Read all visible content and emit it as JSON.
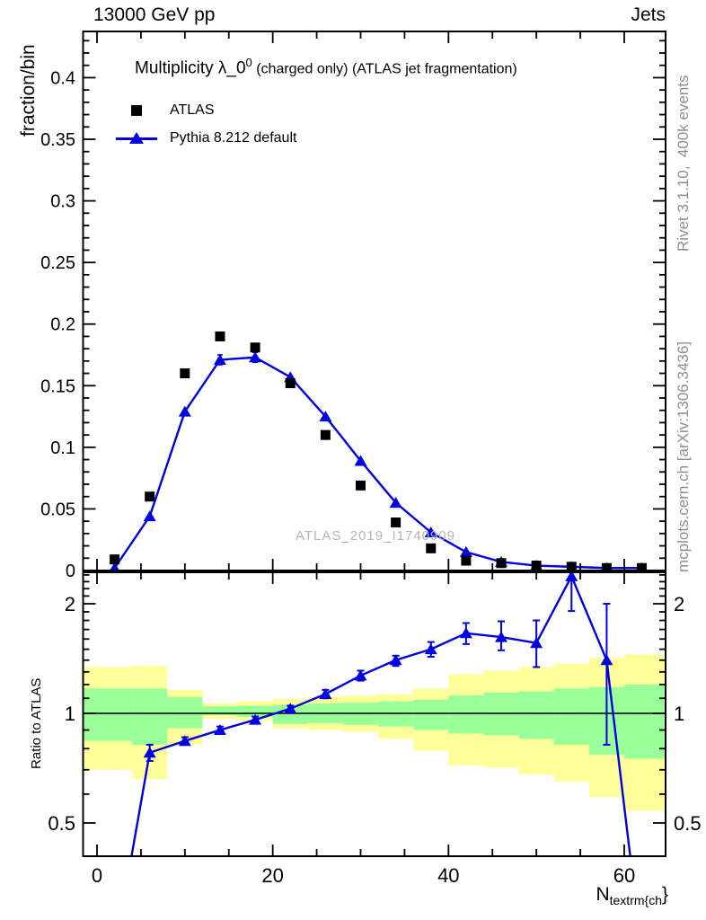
{
  "header": {
    "left": "13000 GeV pp",
    "right": "Jets"
  },
  "title": {
    "prefix": "Multiplicity λ_0",
    "sup": "0",
    "suffix": " (charged only) (ATLAS jet fragmentation)"
  },
  "legend": {
    "items": [
      {
        "label": "ATLAS",
        "marker": "black-square"
      },
      {
        "label": "Pythia 8.212 default",
        "marker": "blue-line-triangle"
      }
    ]
  },
  "watermark": "ATLAS_2019_I1740909",
  "side_notes": {
    "top_right": "Rivet 3.1.10,  400k events",
    "bottom_right": "mcplots.cern.ch [arXiv:1306.3436]"
  },
  "axis_labels": {
    "main_y": "fraction/bin",
    "ratio_y": "Ratio to ATLAS",
    "x_prefix": "N",
    "x_sub": "textrm{ch",
    "x_suffix": "}"
  },
  "colors": {
    "line_blue": "#0000e0",
    "data_black": "#000000",
    "band_outer_yellow": "#ffff99",
    "band_inner_green": "#99ff99",
    "frame": "#000000",
    "side_text_gray": "#8e8e8e",
    "watermark_gray": "#b5b5b5"
  },
  "chart_data": [
    {
      "type": "line",
      "panel": "main",
      "title": "Multiplicity λ_0^0 (charged only) (ATLAS jet fragmentation)",
      "xlabel": "N_textrm{ch}",
      "ylabel": "fraction/bin",
      "xlim": [
        -1.6,
        64.7
      ],
      "ylim": [
        0,
        0.4375
      ],
      "grid": false,
      "legend_position": "top-left-inside",
      "xticks": {
        "major": [
          0,
          20,
          40,
          60
        ],
        "labels": [
          "0",
          "20",
          "40",
          "60"
        ],
        "minor_step": 5
      },
      "yticks": {
        "major": [
          0,
          0.05,
          0.1,
          0.15,
          0.2,
          0.25,
          0.3,
          0.35,
          0.4
        ],
        "labels": [
          "0",
          "0.05",
          "0.1",
          "0.15",
          "0.2",
          "0.25",
          "0.3",
          "0.35",
          "0.4"
        ],
        "minor_step": 0.01
      },
      "x": [
        2,
        6,
        10,
        14,
        18,
        22,
        26,
        30,
        34,
        38,
        42,
        46,
        50,
        54,
        58,
        62
      ],
      "series": [
        {
          "name": "ATLAS",
          "marker": "square",
          "color": "#000000",
          "line": false,
          "values": [
            0.009,
            0.06,
            0.16,
            0.19,
            0.181,
            0.152,
            0.11,
            0.069,
            0.039,
            0.018,
            0.008,
            0.006,
            0.004,
            0.003,
            0.002,
            0.002
          ]
        },
        {
          "name": "Pythia 8.212 default",
          "marker": "triangle",
          "color": "#0000e0",
          "line": true,
          "values": [
            0.002,
            0.044,
            0.129,
            0.171,
            0.173,
            0.157,
            0.125,
            0.089,
            0.055,
            0.031,
            0.015,
            0.007,
            0.004,
            0.003,
            0.002,
            0.002
          ],
          "err": [
            0,
            0,
            0,
            0.004,
            0.004,
            0,
            0,
            0,
            0,
            0,
            0,
            0,
            0,
            0,
            0,
            0
          ]
        }
      ]
    },
    {
      "type": "line",
      "panel": "ratio",
      "ylabel": "Ratio to ATLAS",
      "yscale": "log",
      "ylim": [
        0.405,
        2.44
      ],
      "yticks": {
        "major": [
          0.5,
          1,
          2
        ],
        "labels": [
          "0.5",
          "1",
          "2"
        ],
        "minor": [
          0.5,
          0.6,
          0.7,
          0.8,
          0.9,
          1.0,
          1.1,
          1.2,
          1.3,
          1.4,
          1.5,
          1.6,
          1.7,
          1.8,
          1.9,
          2.0,
          2.1,
          2.2,
          2.3,
          2.4
        ]
      },
      "reference_line": 1,
      "x": [
        2,
        6,
        10,
        14,
        18,
        22,
        26,
        30,
        34,
        38,
        42,
        46,
        50,
        54,
        58,
        62
      ],
      "values": [
        0.22,
        0.78,
        0.84,
        0.9,
        0.96,
        1.03,
        1.13,
        1.27,
        1.4,
        1.5,
        1.66,
        1.62,
        1.56,
        2.38,
        1.4,
        0.22
      ],
      "err_lo": [
        0,
        0.74,
        0.82,
        0.88,
        0.94,
        1.01,
        1.1,
        1.23,
        1.35,
        1.43,
        1.55,
        1.49,
        1.34,
        1.91,
        0.82,
        0
      ],
      "err_hi": [
        0,
        0.82,
        0.86,
        0.92,
        0.98,
        1.05,
        1.16,
        1.31,
        1.44,
        1.57,
        1.77,
        1.79,
        1.8,
        2.55,
        2.0,
        0
      ],
      "bands": [
        {
          "x0": -1.6,
          "x1": 4,
          "yellow": [
            0.7,
            1.34
          ],
          "green": [
            0.84,
            1.17
          ]
        },
        {
          "x0": 4,
          "x1": 8,
          "yellow": [
            0.66,
            1.35
          ],
          "green": [
            0.82,
            1.17
          ]
        },
        {
          "x0": 8,
          "x1": 12,
          "yellow": [
            0.82,
            1.16
          ],
          "green": [
            0.91,
            1.11
          ]
        },
        {
          "x0": 12,
          "x1": 16,
          "yellow": [
            0.965,
            1.065
          ],
          "green": [
            0.988,
            1.045
          ]
        },
        {
          "x0": 16,
          "x1": 20,
          "yellow": [
            0.955,
            1.08
          ],
          "green": [
            0.978,
            1.05
          ]
        },
        {
          "x0": 20,
          "x1": 24,
          "yellow": [
            0.91,
            1.095
          ],
          "green": [
            0.935,
            1.055
          ]
        },
        {
          "x0": 24,
          "x1": 28,
          "yellow": [
            0.9,
            1.11
          ],
          "green": [
            0.94,
            1.065
          ]
        },
        {
          "x0": 28,
          "x1": 32,
          "yellow": [
            0.89,
            1.12
          ],
          "green": [
            0.93,
            1.07
          ]
        },
        {
          "x0": 32,
          "x1": 36,
          "yellow": [
            0.85,
            1.13
          ],
          "green": [
            0.92,
            1.08
          ]
        },
        {
          "x0": 36,
          "x1": 40,
          "yellow": [
            0.79,
            1.17
          ],
          "green": [
            0.9,
            1.09
          ]
        },
        {
          "x0": 40,
          "x1": 44,
          "yellow": [
            0.72,
            1.28
          ],
          "green": [
            0.88,
            1.12
          ]
        },
        {
          "x0": 44,
          "x1": 48,
          "yellow": [
            0.71,
            1.31
          ],
          "green": [
            0.87,
            1.14
          ]
        },
        {
          "x0": 48,
          "x1": 52,
          "yellow": [
            0.68,
            1.34
          ],
          "green": [
            0.85,
            1.15
          ]
        },
        {
          "x0": 52,
          "x1": 56,
          "yellow": [
            0.65,
            1.37
          ],
          "green": [
            0.82,
            1.17
          ]
        },
        {
          "x0": 56,
          "x1": 60,
          "yellow": [
            0.59,
            1.42
          ],
          "green": [
            0.77,
            1.18
          ]
        },
        {
          "x0": 60,
          "x1": 64.7,
          "yellow": [
            0.54,
            1.45
          ],
          "green": [
            0.75,
            1.2
          ]
        }
      ]
    }
  ]
}
